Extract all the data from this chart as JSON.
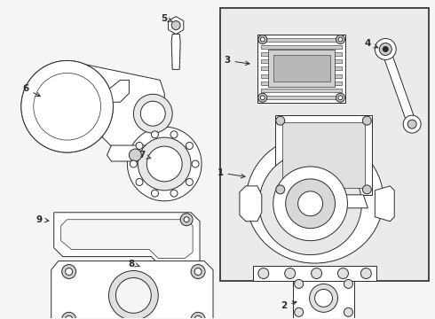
{
  "bg_color": "#f5f5f5",
  "box_bg": "#ebebeb",
  "line_color": "#2a2a2a",
  "white": "#ffffff",
  "gray_light": "#dddddd",
  "figsize": [
    4.9,
    3.6
  ],
  "dpi": 100
}
